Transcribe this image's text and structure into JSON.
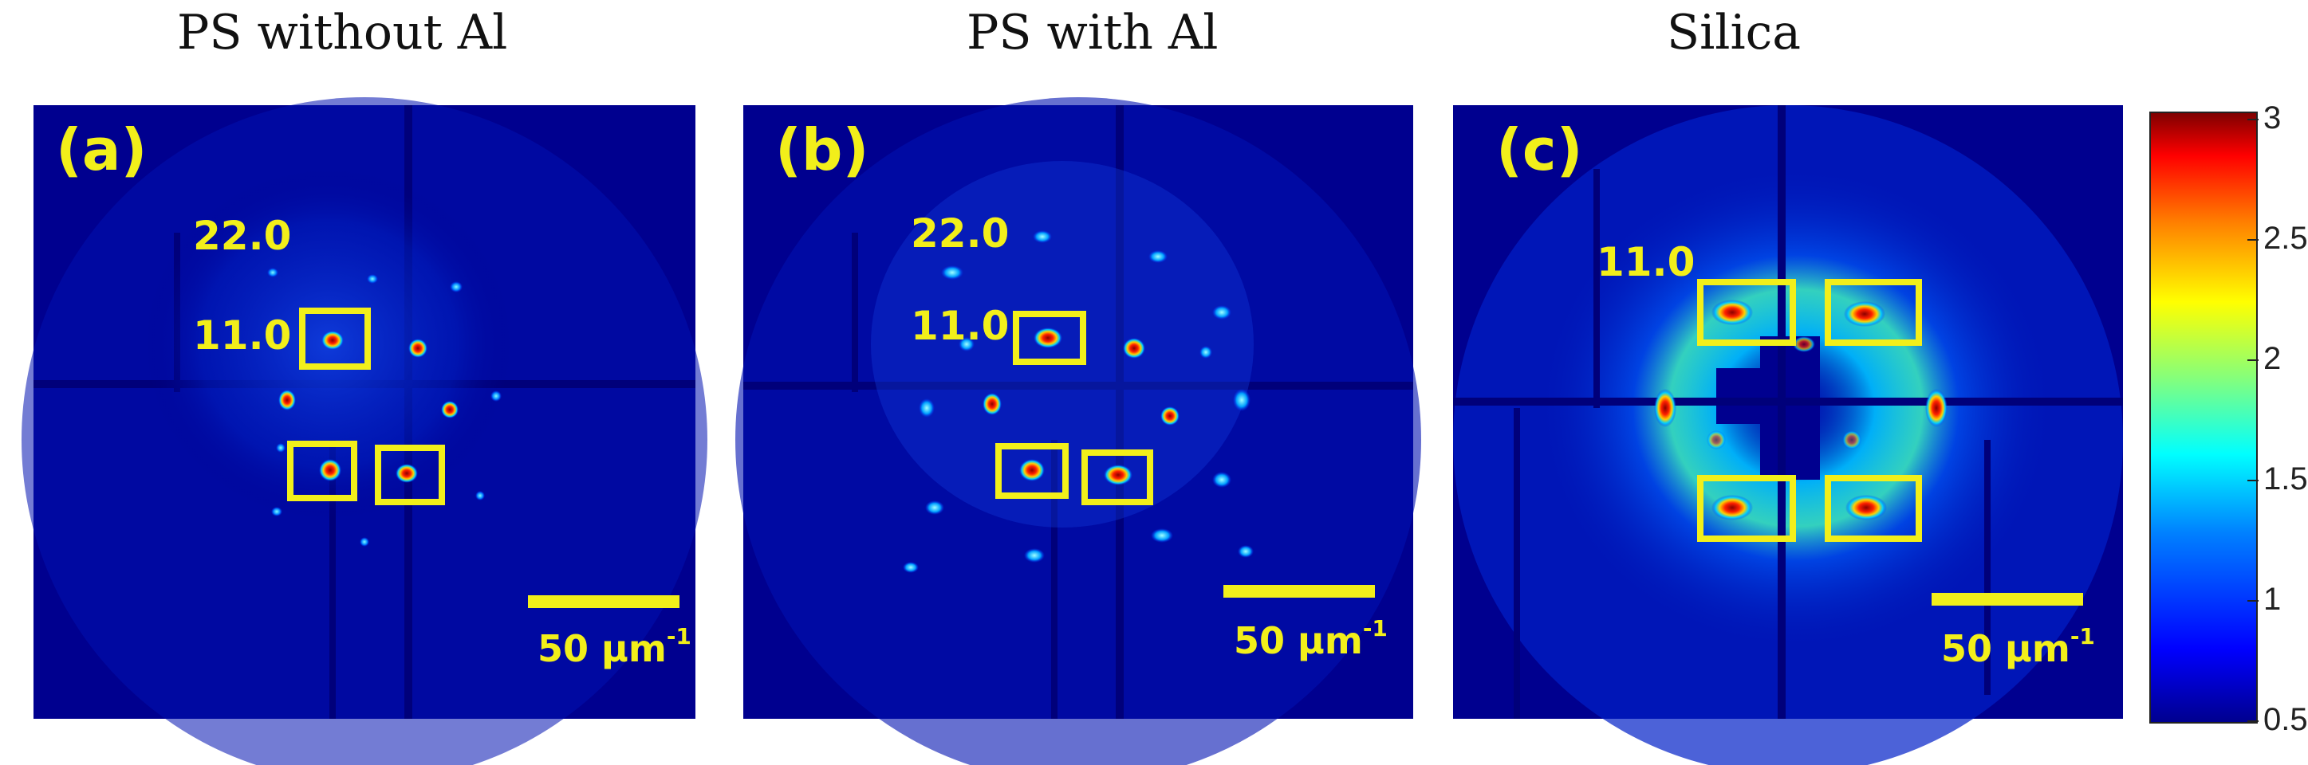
{
  "panels": [
    {
      "title": "PS without Al",
      "label": "(a)",
      "index_labels": [
        "22.0",
        "11.0"
      ],
      "scale_bar": "50 μm",
      "scale_exp": "-1"
    },
    {
      "title": "PS with Al",
      "label": "(b)",
      "index_labels": [
        "22.0",
        "11.0"
      ],
      "scale_bar": "50 μm",
      "scale_exp": "-1"
    },
    {
      "title": "Silica",
      "label": "(c)",
      "index_labels": [
        "11.0"
      ],
      "scale_bar": "50 μm",
      "scale_exp": "-1"
    }
  ],
  "colorbar": {
    "ticks": [
      "3",
      "2.5",
      "2",
      "1.5",
      "1",
      "0.5"
    ],
    "range": [
      0.5,
      3
    ],
    "colormap": "jet"
  }
}
